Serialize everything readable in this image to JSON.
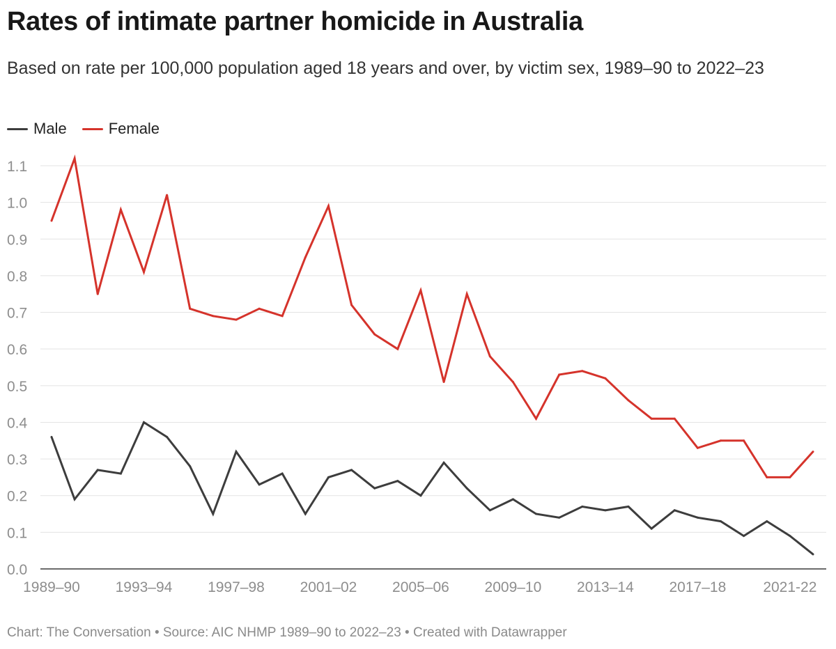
{
  "title": "Rates of intimate partner homicide in Australia",
  "subtitle": "Based on rate per 100,000 population aged 18 years and over, by victim sex, 1989–90 to 2022–23",
  "footer": {
    "chart_credit": "Chart: The Conversation",
    "source": "Source: AIC NHMP 1989–90 to 2022–23",
    "created": "Created with Datawrapper",
    "separator": "•"
  },
  "colors": {
    "male": "#3d3d3d",
    "female": "#d5332b",
    "grid": "#e3e3e3",
    "axis_text": "#8e8e8e"
  },
  "chart_data": {
    "type": "line",
    "title": "Rates of intimate partner homicide in Australia",
    "xlabel": "",
    "ylabel": "",
    "ylim": [
      0,
      1.1
    ],
    "yticks": [
      "0.0",
      "0.1",
      "0.2",
      "0.3",
      "0.4",
      "0.5",
      "0.6",
      "0.7",
      "0.8",
      "0.9",
      "1.0",
      "1.1"
    ],
    "grid": true,
    "legend_position": "top-left",
    "x": [
      "1989–90",
      "1990–91",
      "1991–92",
      "1992–93",
      "1993–94",
      "1994–95",
      "1995–96",
      "1996–97",
      "1997–98",
      "1998–99",
      "1999–00",
      "2000–01",
      "2001–02",
      "2002–03",
      "2003–04",
      "2004–05",
      "2005–06",
      "2006–07",
      "2007–08",
      "2008–09",
      "2009–10",
      "2010–11",
      "2011–12",
      "2012–13",
      "2013–14",
      "2014–15",
      "2015–16",
      "2016–17",
      "2017–18",
      "2018–19",
      "2019–20",
      "2020–21",
      "2021-22",
      "2022–23"
    ],
    "xtick_labels": [
      {
        "index": 0,
        "label": "1989–90"
      },
      {
        "index": 4,
        "label": "1993–94"
      },
      {
        "index": 8,
        "label": "1997–98"
      },
      {
        "index": 12,
        "label": "2001–02"
      },
      {
        "index": 16,
        "label": "2005–06"
      },
      {
        "index": 20,
        "label": "2009–10"
      },
      {
        "index": 24,
        "label": "2013–14"
      },
      {
        "index": 28,
        "label": "2017–18"
      },
      {
        "index": 32,
        "label": "2021-22"
      }
    ],
    "series": [
      {
        "name": "Male",
        "color": "#3d3d3d",
        "values": [
          0.36,
          0.19,
          0.27,
          0.26,
          0.4,
          0.36,
          0.28,
          0.15,
          0.32,
          0.23,
          0.26,
          0.15,
          0.25,
          0.27,
          0.22,
          0.24,
          0.2,
          0.29,
          0.22,
          0.16,
          0.19,
          0.15,
          0.14,
          0.17,
          0.16,
          0.17,
          0.11,
          0.16,
          0.14,
          0.13,
          0.09,
          0.13,
          0.09,
          0.04
        ]
      },
      {
        "name": "Female",
        "color": "#d5332b",
        "values": [
          0.95,
          1.12,
          0.75,
          0.98,
          0.81,
          1.02,
          0.71,
          0.69,
          0.68,
          0.71,
          0.69,
          0.85,
          0.99,
          0.72,
          0.64,
          0.6,
          0.76,
          0.51,
          0.75,
          0.58,
          0.51,
          0.41,
          0.53,
          0.54,
          0.52,
          0.46,
          0.41,
          0.41,
          0.33,
          0.35,
          0.35,
          0.25,
          0.25,
          0.32
        ]
      }
    ]
  }
}
